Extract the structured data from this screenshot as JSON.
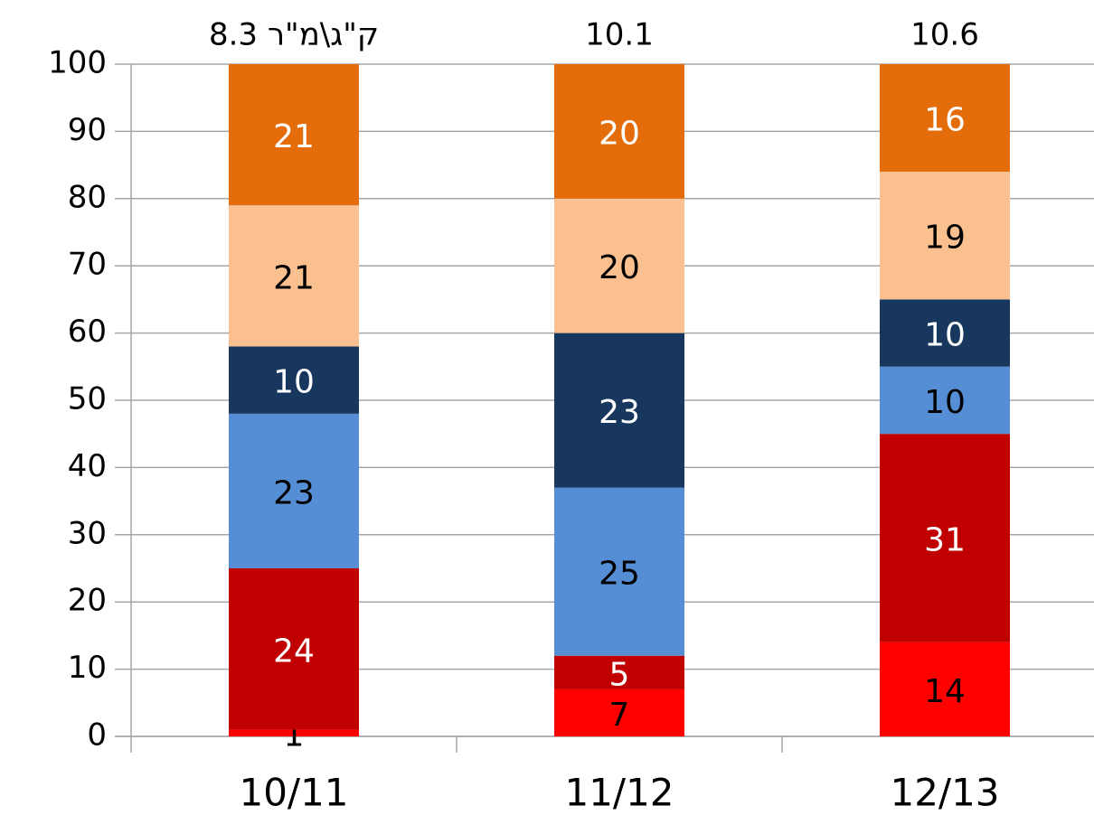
{
  "chart_data": {
    "type": "stacked-bar",
    "categories": [
      "10/11",
      "11/12",
      "12/13"
    ],
    "annotations": [
      "8.3 ק\"ג\\מ\"ר",
      "10.1",
      "10.6"
    ],
    "series": [
      {
        "color": "#ff0000",
        "label_color": "#000000",
        "values": [
          1,
          7,
          14
        ]
      },
      {
        "color": "#c00000",
        "label_color": "#ffffff",
        "values": [
          24,
          5,
          31
        ]
      },
      {
        "color": "#558ed5",
        "label_color": "#000000",
        "values": [
          23,
          25,
          10
        ]
      },
      {
        "color": "#17375e",
        "label_color": "#ffffff",
        "values": [
          10,
          23,
          10
        ]
      },
      {
        "color": "#fac090",
        "label_color": "#000000",
        "values": [
          21,
          20,
          19
        ]
      },
      {
        "color": "#e46c0a",
        "label_color": "#ffffff",
        "values": [
          21,
          20,
          16
        ]
      }
    ],
    "ylim": [
      0,
      100
    ],
    "yticks": [
      0,
      10,
      20,
      30,
      40,
      50,
      60,
      70,
      80,
      90,
      100
    ],
    "grid": true
  }
}
